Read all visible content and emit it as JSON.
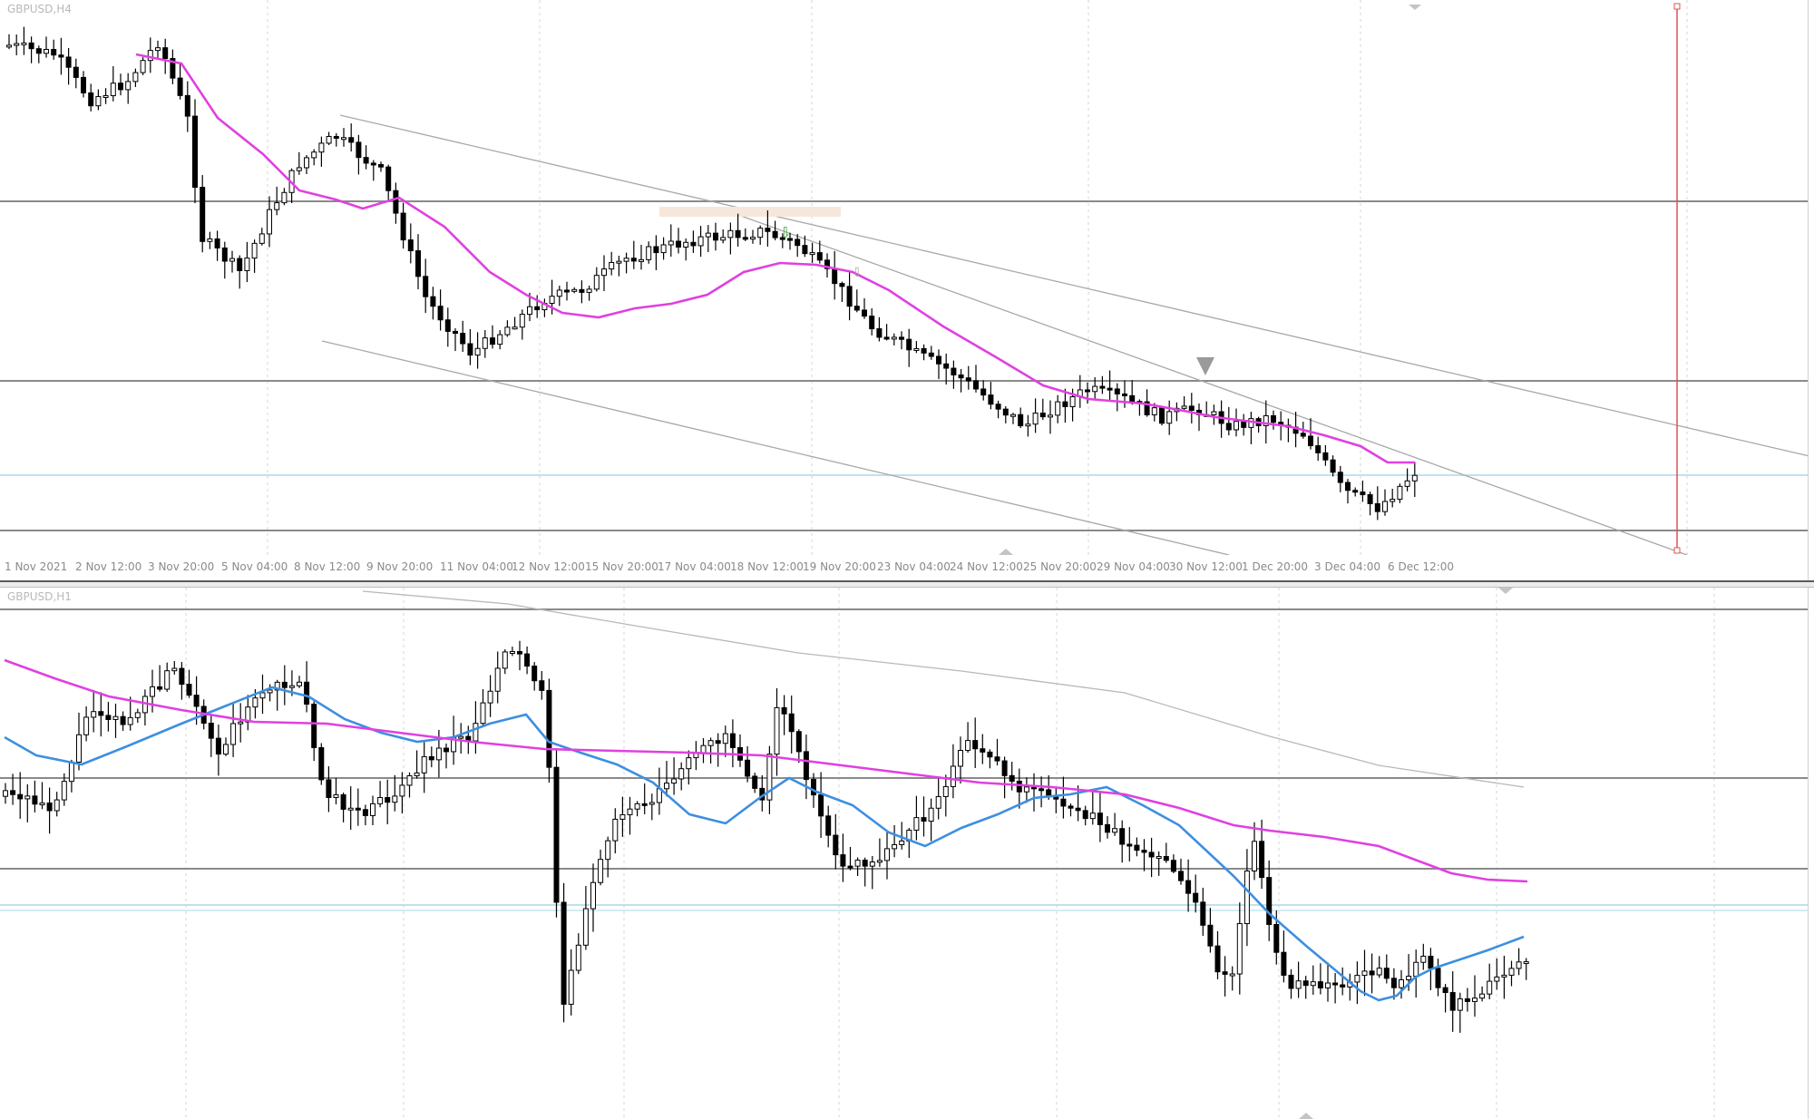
{
  "panes": {
    "top": {
      "label": "GBPUSD,H4"
    },
    "bottom": {
      "label": "GBPUSD,H1"
    }
  },
  "date_axis": {
    "labels": [
      "1 Nov 2021",
      "2 Nov 12:00",
      "3 Nov 20:00",
      "5 Nov 04:00",
      "8 Nov 12:00",
      "9 Nov 20:00",
      "11 Nov 04:00",
      "12 Nov 12:00",
      "15 Nov 20:00",
      "17 Nov 04:00",
      "18 Nov 12:00",
      "19 Nov 20:00",
      "23 Nov 04:00",
      "24 Nov 12:00",
      "25 Nov 20:00",
      "29 Nov 04:00",
      "30 Nov 12:00",
      "1 Dec 20:00",
      "3 Dec 04:00",
      "6 Dec 12:00"
    ]
  },
  "colors": {
    "ma_slow": "#e040e0",
    "ma_fast": "#3d8fe0",
    "trendline": "#a8a8a8",
    "level_line": "#8a8a8a",
    "bid_line": "#a8d8e8",
    "vline": "#e05050",
    "bear_candle": "#000000",
    "bull_candle": "#ffffff"
  },
  "icons": {
    "sell_arrow": "down-arrow-icon",
    "marker": "gray-down-marker-icon"
  }
}
